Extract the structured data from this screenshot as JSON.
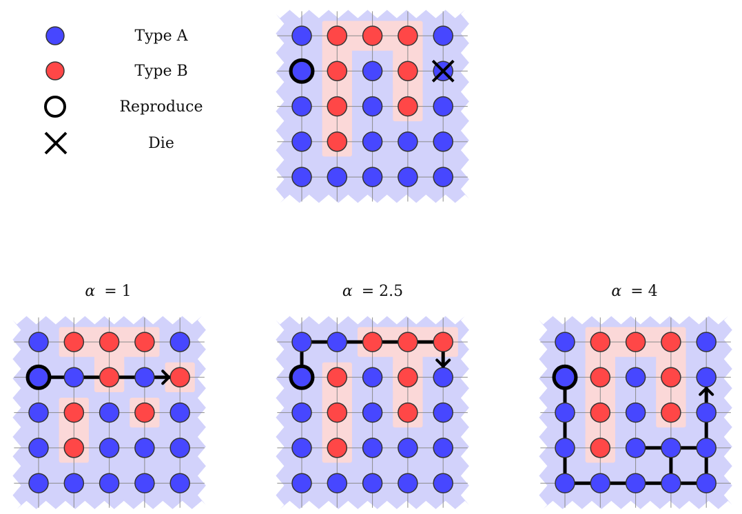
{
  "legend": {
    "items": [
      {
        "key": "type-a",
        "label": "Type A"
      },
      {
        "key": "type-b",
        "label": "Type B"
      },
      {
        "key": "reproduce",
        "label": "Reproduce"
      },
      {
        "key": "die",
        "label": "Die"
      }
    ]
  },
  "colors": {
    "type_a": "#4747ff",
    "type_b": "#ff4747",
    "region_a": "#d2d2fb",
    "region_b": "#fbd8d8",
    "grid": "#8a8a8a",
    "stroke": "#000000"
  },
  "panels": [
    {
      "id": "initial",
      "title_var": "",
      "title_val": "",
      "grid": [
        "ABBBA",
        "ABABA",
        "ABABA",
        "ABAAA",
        "AAAAA"
      ],
      "reproduce": [
        1,
        0
      ],
      "die": [
        1,
        4
      ],
      "path": [],
      "arrow": null
    },
    {
      "id": "alpha-1",
      "title_var": "α",
      "title_val": "= 1",
      "grid": [
        "ABBBA",
        "AABAB",
        "ABABA",
        "ABAAA",
        "AAAAA"
      ],
      "reproduce": [
        1,
        0
      ],
      "die": null,
      "path": [
        [
          [
            1,
            0
          ],
          [
            1,
            4
          ]
        ]
      ],
      "arrow": {
        "from": [
          1,
          3
        ],
        "to": [
          1,
          4
        ]
      }
    },
    {
      "id": "alpha-2.5",
      "title_var": "α",
      "title_val": "= 2.5",
      "grid": [
        "AABBB",
        "ABABA",
        "ABABA",
        "ABAAA",
        "AAAAA"
      ],
      "reproduce": [
        1,
        0
      ],
      "die": null,
      "path": [
        [
          [
            1,
            0
          ],
          [
            0,
            0
          ],
          [
            0,
            4
          ],
          [
            1,
            4
          ]
        ]
      ],
      "arrow": {
        "from": [
          0,
          4
        ],
        "to": [
          1,
          4
        ]
      }
    },
    {
      "id": "alpha-4",
      "title_var": "α",
      "title_val": "= 4",
      "grid": [
        "ABBBA",
        "ABABA",
        "ABABA",
        "ABAAA",
        "AAAAA"
      ],
      "reproduce": [
        1,
        0
      ],
      "die": null,
      "path": [
        [
          [
            1,
            0
          ],
          [
            4,
            0
          ],
          [
            4,
            4
          ],
          [
            1,
            4
          ]
        ],
        [
          [
            3,
            2
          ],
          [
            3,
            4
          ]
        ],
        [
          [
            3,
            3
          ],
          [
            4,
            3
          ]
        ]
      ],
      "arrow": {
        "from": [
          2,
          4
        ],
        "to": [
          1,
          4
        ]
      }
    }
  ]
}
